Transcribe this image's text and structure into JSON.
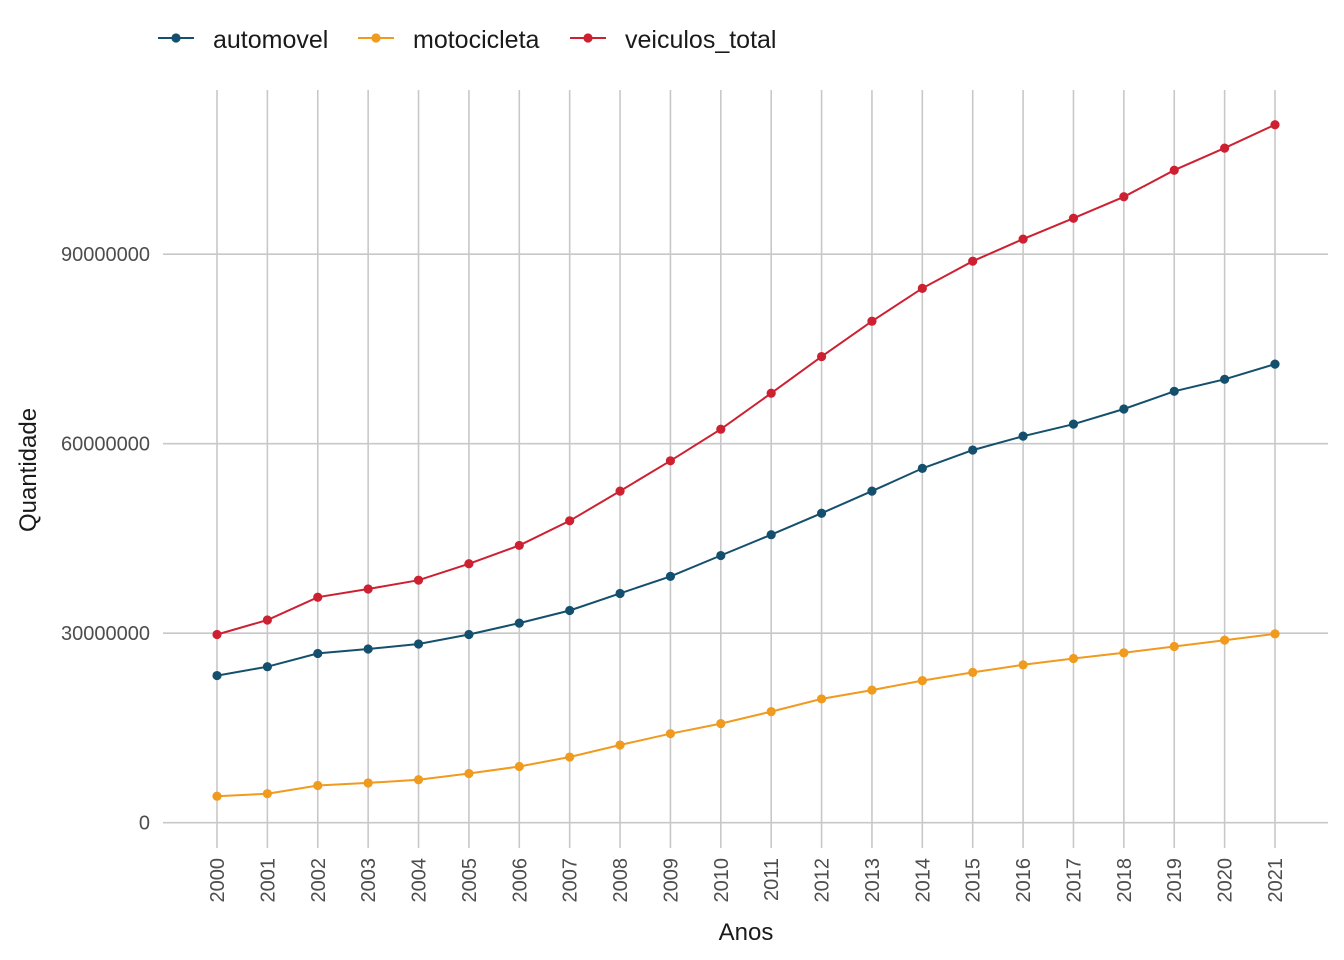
{
  "chart_data": {
    "type": "line",
    "title": "",
    "xlabel": "Anos",
    "ylabel": "Quantidade",
    "x": [
      2000,
      2001,
      2002,
      2003,
      2004,
      2005,
      2006,
      2007,
      2008,
      2009,
      2010,
      2011,
      2012,
      2013,
      2014,
      2015,
      2016,
      2017,
      2018,
      2019,
      2020,
      2021
    ],
    "x_tick_labels": [
      "2000",
      "2001",
      "2002",
      "2003",
      "2004",
      "2005",
      "2006",
      "2007",
      "2008",
      "2009",
      "2010",
      "2011",
      "2012",
      "2013",
      "2014",
      "2015",
      "2016",
      "2017",
      "2018",
      "2019",
      "2020",
      "2021"
    ],
    "y_ticks": [
      0,
      30000000,
      60000000,
      90000000
    ],
    "y_tick_labels": [
      "0",
      "30000000",
      "60000000",
      "90000000"
    ],
    "ylim": [
      -4000000,
      116000000
    ],
    "grid": true,
    "legend_position": "top-left",
    "series": [
      {
        "name": "automovel",
        "color": "#14506e",
        "values": [
          23300000,
          24700000,
          26800000,
          27500000,
          28300000,
          29800000,
          31600000,
          33600000,
          36300000,
          39000000,
          42300000,
          45600000,
          49000000,
          52500000,
          56100000,
          59000000,
          61200000,
          63100000,
          65500000,
          68300000,
          70200000,
          72600000
        ]
      },
      {
        "name": "motocicleta",
        "color": "#f09a1e",
        "values": [
          4200000,
          4600000,
          5900000,
          6300000,
          6800000,
          7800000,
          8900000,
          10400000,
          12300000,
          14100000,
          15700000,
          17600000,
          19600000,
          21000000,
          22500000,
          23800000,
          25000000,
          26000000,
          26900000,
          27900000,
          28900000,
          29900000
        ]
      },
      {
        "name": "veiculos_total",
        "color": "#cd2131",
        "values": [
          29800000,
          32100000,
          35700000,
          37000000,
          38400000,
          41000000,
          43900000,
          47800000,
          52500000,
          57300000,
          62300000,
          68000000,
          73800000,
          79400000,
          84600000,
          88900000,
          92400000,
          95700000,
          99100000,
          103300000,
          106800000,
          110500000
        ]
      }
    ]
  }
}
